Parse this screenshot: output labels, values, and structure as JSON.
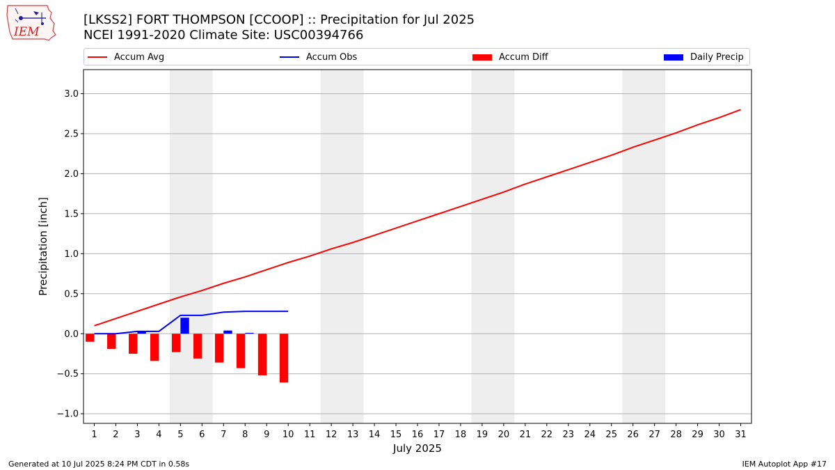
{
  "logo": {
    "text": "IEM"
  },
  "title": {
    "line1": "[LKSS2] FORT THOMPSON [CCOOP] :: Precipitation for Jul 2025",
    "line2": "NCEI 1991-2020 Climate Site: USC00394766"
  },
  "legend": [
    {
      "label": "Accum Avg",
      "kind": "line",
      "color": "#ff0000"
    },
    {
      "label": "Accum Obs",
      "kind": "line",
      "color": "#0000ff"
    },
    {
      "label": "Accum Diff",
      "kind": "bar",
      "color": "#ff0000"
    },
    {
      "label": "Daily Precip",
      "kind": "bar",
      "color": "#0000ff"
    }
  ],
  "footer": {
    "generated": "Generated at 10 Jul 2025 8:24 PM CDT in 0.58s",
    "app": "IEM Autoplot App #17"
  },
  "chart_data": {
    "type": "bar",
    "xlabel": "July 2025",
    "ylabel": "Precipitation [inch]",
    "xlim": [
      0.5,
      31.5
    ],
    "ylim": [
      -1.12,
      3.3
    ],
    "x_ticks": [
      1,
      2,
      3,
      4,
      5,
      6,
      7,
      8,
      9,
      10,
      11,
      12,
      13,
      14,
      15,
      16,
      17,
      18,
      19,
      20,
      21,
      22,
      23,
      24,
      25,
      26,
      27,
      28,
      29,
      30,
      31
    ],
    "y_ticks": [
      -1.0,
      -0.5,
      0.0,
      0.5,
      1.0,
      1.5,
      2.0,
      2.5,
      3.0
    ],
    "y_tick_labels": [
      "−1.0",
      "−0.5",
      "0.0",
      "0.5",
      "1.0",
      "1.5",
      "2.0",
      "2.5",
      "3.0"
    ],
    "grid": "horizontal",
    "weekend_shading": [
      [
        4.5,
        6.5
      ],
      [
        11.5,
        13.5
      ],
      [
        18.5,
        20.5
      ],
      [
        25.5,
        27.5
      ]
    ],
    "weekend_color": "#eeeeee",
    "series": [
      {
        "name": "Accum Avg",
        "kind": "line",
        "color": "#ff0000",
        "x": [
          1,
          2,
          3,
          4,
          5,
          6,
          7,
          8,
          9,
          10,
          11,
          12,
          13,
          14,
          15,
          16,
          17,
          18,
          19,
          20,
          21,
          22,
          23,
          24,
          25,
          26,
          27,
          28,
          29,
          30,
          31
        ],
        "values": [
          0.1,
          0.19,
          0.28,
          0.37,
          0.46,
          0.54,
          0.63,
          0.71,
          0.8,
          0.89,
          0.97,
          1.06,
          1.14,
          1.23,
          1.32,
          1.41,
          1.5,
          1.59,
          1.68,
          1.77,
          1.87,
          1.96,
          2.05,
          2.14,
          2.23,
          2.33,
          2.42,
          2.51,
          2.61,
          2.7,
          2.8
        ]
      },
      {
        "name": "Accum Obs",
        "kind": "line",
        "color": "#0000ff",
        "x": [
          1,
          2,
          3,
          4,
          5,
          6,
          7,
          8,
          9,
          10
        ],
        "values": [
          0.0,
          0.0,
          0.03,
          0.03,
          0.23,
          0.23,
          0.27,
          0.28,
          0.28,
          0.28
        ]
      },
      {
        "name": "Accum Diff",
        "kind": "bar",
        "color": "#ff0000",
        "offset": -0.2,
        "x": [
          1,
          2,
          3,
          4,
          5,
          6,
          7,
          8,
          9,
          10
        ],
        "values": [
          -0.1,
          -0.19,
          -0.25,
          -0.34,
          -0.23,
          -0.31,
          -0.36,
          -0.43,
          -0.52,
          -0.61
        ]
      },
      {
        "name": "Daily Precip",
        "kind": "bar",
        "color": "#0000ff",
        "offset": 0.2,
        "x": [
          1,
          2,
          3,
          4,
          5,
          6,
          7,
          8,
          9,
          10
        ],
        "values": [
          0.0,
          0.0,
          0.03,
          0.0,
          0.2,
          0.0,
          0.04,
          0.01,
          0.0,
          0.0
        ]
      }
    ]
  }
}
